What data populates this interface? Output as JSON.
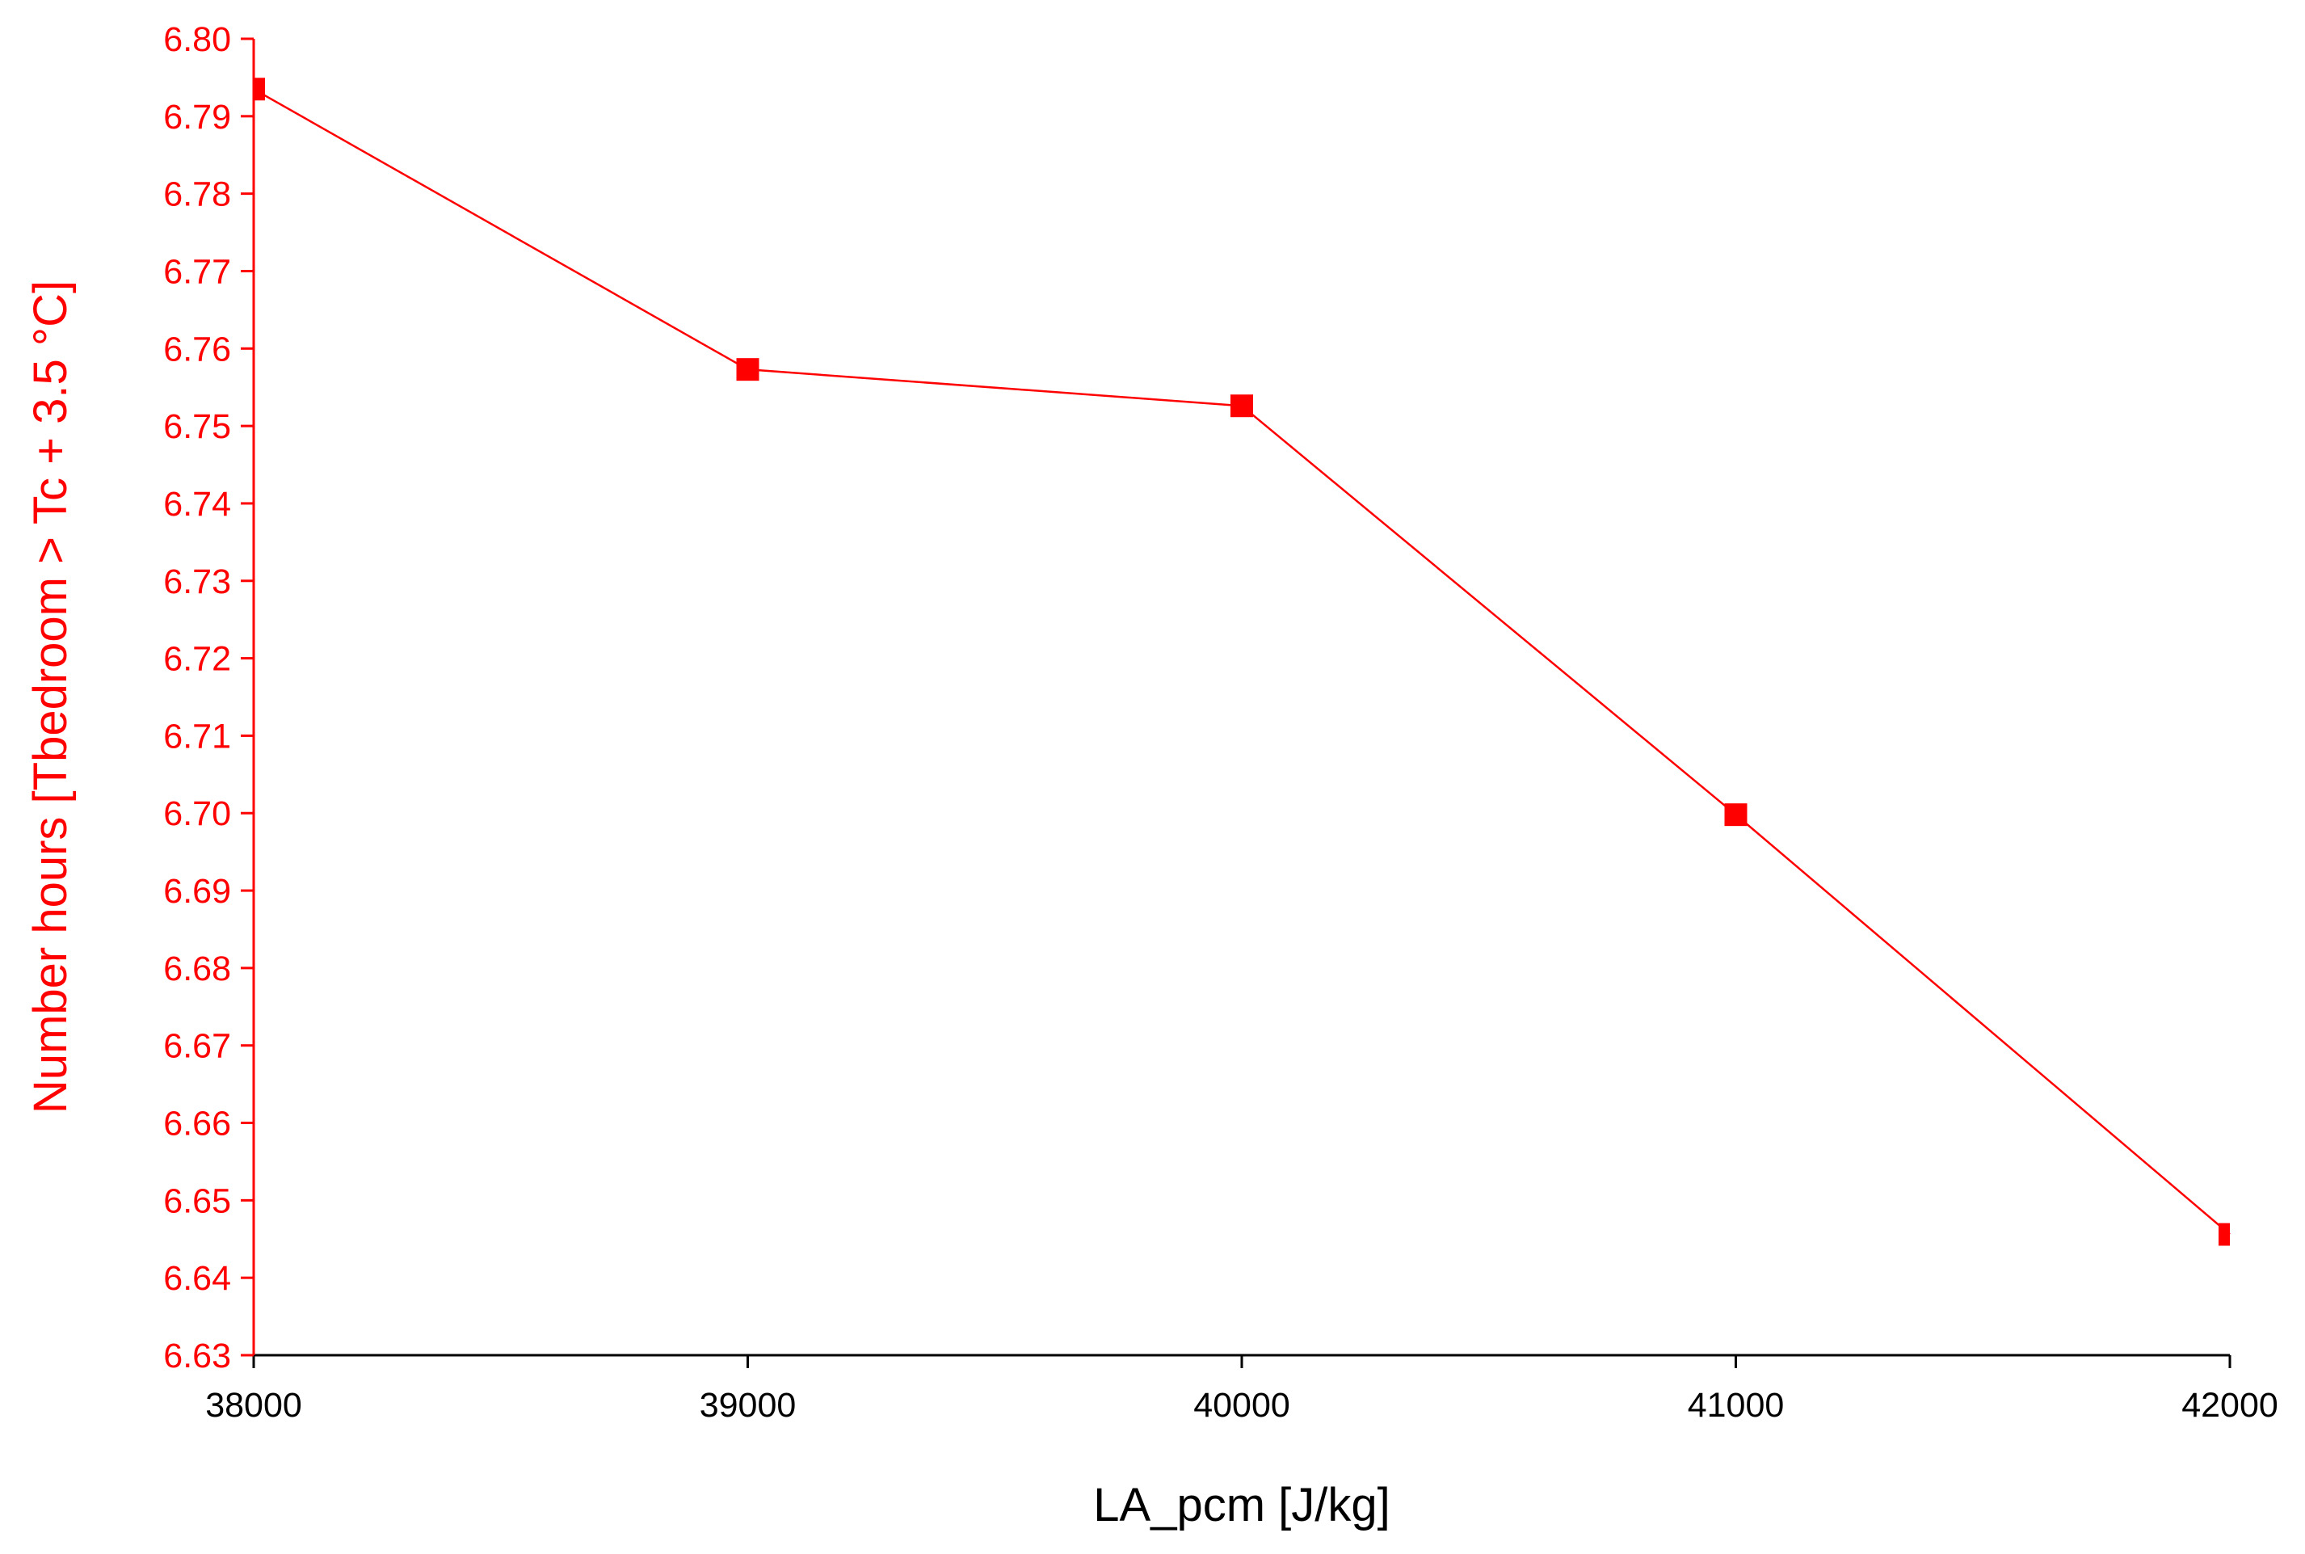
{
  "chart_data": {
    "type": "line",
    "title": "",
    "xlabel": "LA_pcm [J/kg]",
    "ylabel": "Number hours [Tbedroom > Tc + 3.5 °C]",
    "xlim": [
      38000,
      42000
    ],
    "ylim": [
      6.63,
      6.8
    ],
    "x_ticks": [
      "38000",
      "39000",
      "40000",
      "41000",
      "42000"
    ],
    "y_ticks": [
      "6.63",
      "6.64",
      "6.65",
      "6.66",
      "6.67",
      "6.68",
      "6.69",
      "6.70",
      "6.71",
      "6.72",
      "6.73",
      "6.74",
      "6.75",
      "6.76",
      "6.77",
      "6.78",
      "6.79",
      "6.80"
    ],
    "grid": false,
    "marker": "square",
    "series": [
      {
        "x": [
          38000,
          39000,
          40000,
          41000,
          42000
        ],
        "values": [
          6.7935,
          6.7573,
          6.7526,
          6.6998,
          6.6456
        ]
      }
    ],
    "colors": {
      "y_axis": "#ff0000",
      "x_axis": "#000000",
      "series": "#ff0000"
    }
  }
}
